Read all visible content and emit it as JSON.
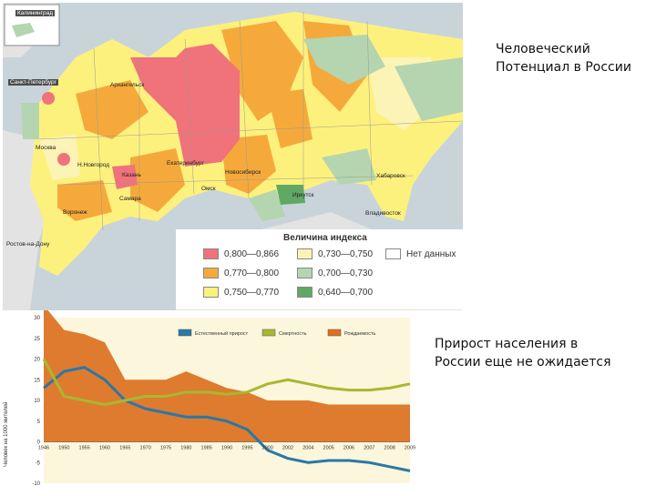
{
  "map": {
    "cities": [
      {
        "name": "Калининград",
        "inv": true
      },
      {
        "name": "Санкт-Петербург",
        "inv": true
      },
      {
        "name": "Архангельск"
      },
      {
        "name": "Москва"
      },
      {
        "name": "Н.Новгород"
      },
      {
        "name": "Казань"
      },
      {
        "name": "Екатеринбург"
      },
      {
        "name": "Новосибирск"
      },
      {
        "name": "Омск"
      },
      {
        "name": "Иркутск"
      },
      {
        "name": "Хабаровск"
      },
      {
        "name": "Владивосток"
      },
      {
        "name": "Самара"
      },
      {
        "name": "Воронеж"
      },
      {
        "name": "Ростов-на-Дону"
      }
    ],
    "legend": {
      "title": "Величина индекса",
      "items": [
        {
          "label": "0,800—0,866",
          "color": "#f0727a"
        },
        {
          "label": "0,770—0,800",
          "color": "#f6a93b"
        },
        {
          "label": "0,750—0,770",
          "color": "#fdf17d"
        },
        {
          "label": "0,730—0,750",
          "color": "#fbf4b6"
        },
        {
          "label": "0,700—0,730",
          "color": "#b4d5b0"
        },
        {
          "label": "0,640—0,700",
          "color": "#5fa865"
        },
        {
          "label": "Нет данных",
          "color": "#ffffff"
        }
      ]
    }
  },
  "caption_top": [
    "Человеческий",
    "Потенциал в России"
  ],
  "caption_bottom": [
    "Прирост населения в",
    "России еще не ожидается"
  ],
  "chart_data": {
    "type": "area",
    "ylabel": "Человек на 1000 жителей",
    "ylim": [
      -10,
      30
    ],
    "yticks": [
      "30",
      "25",
      "20",
      "15",
      "10",
      "5",
      "0",
      "-5",
      "-10"
    ],
    "categories": [
      "1946",
      "1950",
      "1955",
      "1960",
      "1965",
      "1970",
      "1975",
      "1980",
      "1985",
      "1990",
      "1995",
      "2000",
      "2002",
      "2004",
      "2005",
      "2006",
      "2007",
      "2008",
      "2009"
    ],
    "x": [
      1946,
      1950,
      1955,
      1960,
      1965,
      1970,
      1975,
      1980,
      1985,
      1990,
      1995,
      2000,
      2002,
      2004,
      2005,
      2006,
      2007,
      2008,
      2009
    ],
    "legend": [
      "Естественный прирост",
      "Смертность",
      "Рождаемость"
    ],
    "series": [
      {
        "name": "Естественный прирост",
        "color": "#2878a8",
        "values": [
          13,
          17,
          18,
          15,
          10,
          8,
          7,
          6,
          6,
          5,
          3,
          -2,
          -4,
          -5,
          -4.5,
          -4.5,
          -5,
          -6,
          -7
        ]
      },
      {
        "name": "Смертность",
        "color": "#a8b830",
        "values": [
          20,
          11,
          10,
          9,
          10,
          11,
          11,
          12,
          12,
          11.5,
          12,
          14,
          15,
          14,
          13,
          12.5,
          12.5,
          13,
          14
        ]
      },
      {
        "name": "Рождаемость",
        "color": "#e07020",
        "values": [
          33,
          27,
          26,
          24,
          15,
          15,
          15,
          17,
          15,
          13,
          12,
          10,
          10,
          10,
          9,
          9,
          9,
          9,
          9
        ]
      }
    ]
  }
}
